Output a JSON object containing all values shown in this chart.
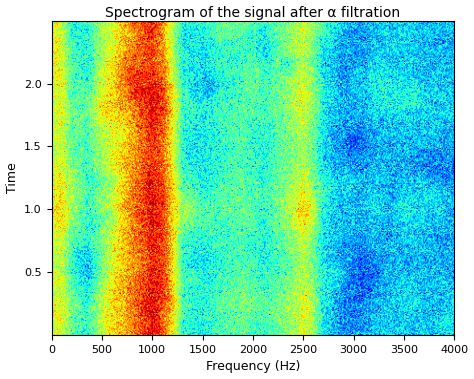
{
  "title": "Spectrogram of the signal after α filtration",
  "xlabel": "Frequency (Hz)",
  "ylabel": "Time",
  "freq_min": 0,
  "freq_max": 4000,
  "time_min": 0,
  "time_max": 2.5,
  "xticks": [
    0,
    500,
    1000,
    1500,
    2000,
    2500,
    3000,
    3500,
    4000
  ],
  "yticks": [
    0.5,
    1.0,
    1.5,
    2.0
  ],
  "seed": 42,
  "n_freq": 500,
  "n_time": 300,
  "title_fontsize": 10,
  "label_fontsize": 9,
  "tick_fontsize": 8,
  "colormap": "jet",
  "background_color": "#ffffff",
  "freq_profile": [
    [
      0,
      0.72
    ],
    [
      100,
      0.72
    ],
    [
      200,
      0.62
    ],
    [
      350,
      0.58
    ],
    [
      500,
      0.7
    ],
    [
      700,
      0.8
    ],
    [
      900,
      0.88
    ],
    [
      1000,
      0.92
    ],
    [
      1100,
      0.88
    ],
    [
      1200,
      0.75
    ],
    [
      1300,
      0.58
    ],
    [
      1500,
      0.56
    ],
    [
      1700,
      0.6
    ],
    [
      1900,
      0.62
    ],
    [
      2100,
      0.58
    ],
    [
      2300,
      0.64
    ],
    [
      2500,
      0.72
    ],
    [
      2600,
      0.65
    ],
    [
      2700,
      0.55
    ],
    [
      2800,
      0.52
    ],
    [
      2900,
      0.5
    ],
    [
      3000,
      0.5
    ],
    [
      3100,
      0.5
    ],
    [
      3200,
      0.52
    ],
    [
      3500,
      0.53
    ],
    [
      4000,
      0.52
    ]
  ],
  "noise_std": 0.06,
  "noise_std2": 0.025
}
